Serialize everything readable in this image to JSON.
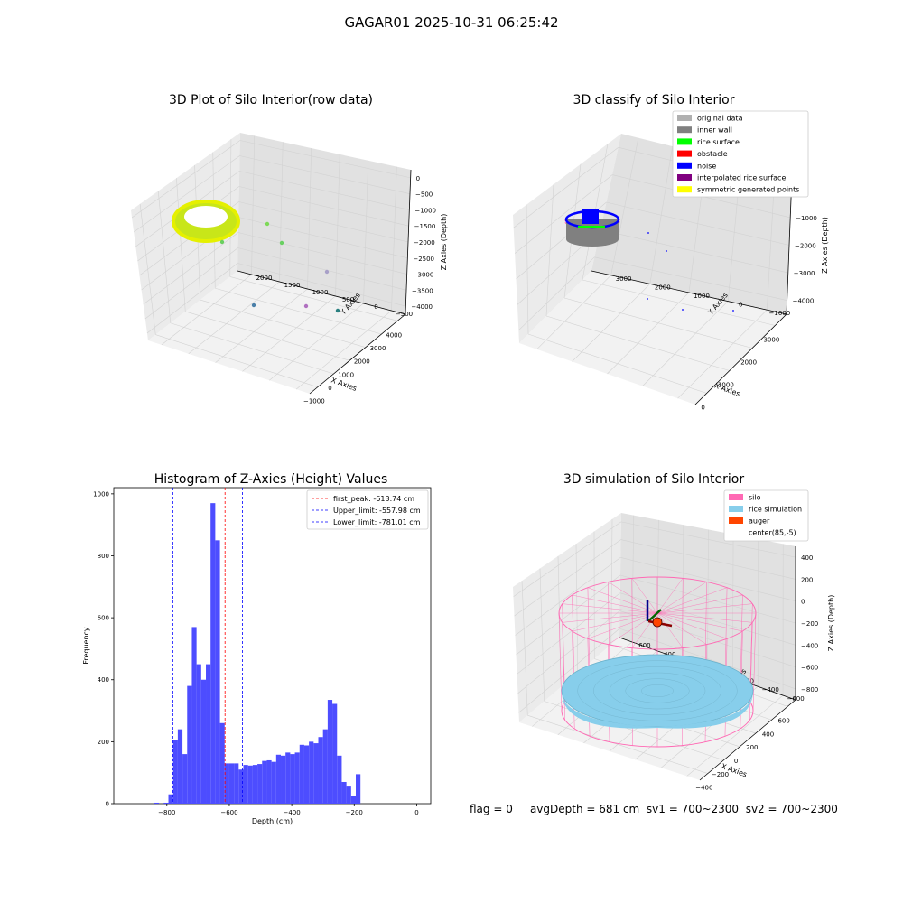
{
  "figure": {
    "title": "GAGAR01 2025-10-31 06:25:42",
    "status": {
      "flag": "flag = 0",
      "avg_depth": "avgDepth = 681 cm",
      "sv1": "sv1 = 700~2300",
      "sv2": "sv2 = 700~2300"
    }
  },
  "colors": {
    "original": "#b0b0b0",
    "inner_wall": "#808080",
    "rice_surface": "#00ff00",
    "obstacle": "#ff0000",
    "noise": "#0000ff",
    "interp": "#800080",
    "symmetric": "#ffff00",
    "silo": "#ff69b4",
    "rice_sim": "#87ceeb",
    "auger": "#ff4500",
    "hist_bar": "#4d4dff"
  },
  "chart_data": [
    {
      "type": "scatter",
      "title": "3D Plot of Silo Interior(row data)",
      "xlabel": "X Axies",
      "ylabel": "Y Axies",
      "zlabel": "Z Axies (Depth)",
      "xticks": [
        "−1000",
        "0",
        "1000",
        "2000",
        "3000",
        "4000"
      ],
      "yticks": [
        "−500",
        "0",
        "500",
        "1000",
        "1500",
        "2000"
      ],
      "zticks": [
        "0",
        "−500",
        "−1000",
        "−1500",
        "−2000",
        "−2500",
        "−3000",
        "−3500",
        "−4000"
      ],
      "xlim": [
        -1000,
        4000
      ],
      "ylim": [
        -500,
        2000
      ],
      "zlim": [
        -4000,
        0
      ],
      "grid": true
    },
    {
      "type": "scatter",
      "title": "3D classify of Silo Interior",
      "xlabel": "X Axies",
      "ylabel": "Y Axies",
      "zlabel": "Z Axies (Depth)",
      "xticks": [
        "0",
        "1000",
        "2000",
        "3000"
      ],
      "yticks": [
        "−1000",
        "0",
        "1000",
        "2000",
        "3000"
      ],
      "zticks": [
        "0",
        "−1000",
        "−2000",
        "−3000",
        "−4000"
      ],
      "legend": [
        "original data",
        "inner wall",
        "rice surface",
        "obstacle",
        "noise",
        "interpolated rice surface",
        "symmetric generated points"
      ],
      "legend_position": "top-right",
      "grid": true
    },
    {
      "type": "bar",
      "title": "Histogram of Z-Axies (Height) Values",
      "xlabel": "Depth (cm)",
      "ylabel": "Frequency",
      "xlim": [
        -970,
        45
      ],
      "ylim": [
        0,
        1020
      ],
      "xticks": [
        -800,
        -600,
        -400,
        -200,
        0
      ],
      "yticks": [
        0,
        200,
        400,
        600,
        800,
        1000
      ],
      "bin_width": 15,
      "bins": [
        [
          -840,
          3
        ],
        [
          -810,
          3
        ],
        [
          -795,
          30
        ],
        [
          -780,
          205
        ],
        [
          -765,
          240
        ],
        [
          -750,
          160
        ],
        [
          -735,
          380
        ],
        [
          -720,
          570
        ],
        [
          -705,
          450
        ],
        [
          -690,
          400
        ],
        [
          -675,
          450
        ],
        [
          -660,
          970
        ],
        [
          -645,
          850
        ],
        [
          -630,
          260
        ],
        [
          -615,
          130
        ],
        [
          -600,
          130
        ],
        [
          -585,
          130
        ],
        [
          -570,
          110
        ],
        [
          -555,
          125
        ],
        [
          -540,
          123
        ],
        [
          -525,
          125
        ],
        [
          -510,
          128
        ],
        [
          -495,
          138
        ],
        [
          -480,
          140
        ],
        [
          -465,
          135
        ],
        [
          -450,
          158
        ],
        [
          -435,
          155
        ],
        [
          -420,
          165
        ],
        [
          -405,
          160
        ],
        [
          -390,
          165
        ],
        [
          -375,
          190
        ],
        [
          -360,
          188
        ],
        [
          -345,
          200
        ],
        [
          -330,
          195
        ],
        [
          -315,
          215
        ],
        [
          -300,
          240
        ],
        [
          -285,
          335
        ],
        [
          -270,
          322
        ],
        [
          -255,
          155
        ],
        [
          -240,
          70
        ],
        [
          -225,
          58
        ],
        [
          -210,
          25
        ],
        [
          -195,
          95
        ]
      ],
      "lines": [
        {
          "label": "first_peak: -613.74 cm",
          "x": -613.74,
          "color": "#ff0000"
        },
        {
          "label": "Upper_limit: -557.98 cm",
          "x": -557.98,
          "color": "#0000ff"
        },
        {
          "label": "Lower_limit: -781.01 cm",
          "x": -781.01,
          "color": "#0000ff"
        }
      ],
      "legend_position": "top-right"
    },
    {
      "type": "scatter",
      "title": "3D simulation of Silo Interior",
      "xlabel": "X Axies",
      "ylabel": "Y Axies",
      "zlabel": "Z Axies (Depth)",
      "xticks": [
        "−400",
        "−200",
        "0",
        "200",
        "400",
        "600"
      ],
      "yticks": [
        "−600",
        "−400",
        "−200",
        "0",
        "200",
        "400",
        "600"
      ],
      "zticks": [
        "400",
        "200",
        "0",
        "−200",
        "−400",
        "−600",
        "−800"
      ],
      "legend": [
        "silo",
        "rice simulation",
        "auger",
        "center(85,-5)"
      ],
      "legend_position": "top-right",
      "grid": true
    }
  ]
}
